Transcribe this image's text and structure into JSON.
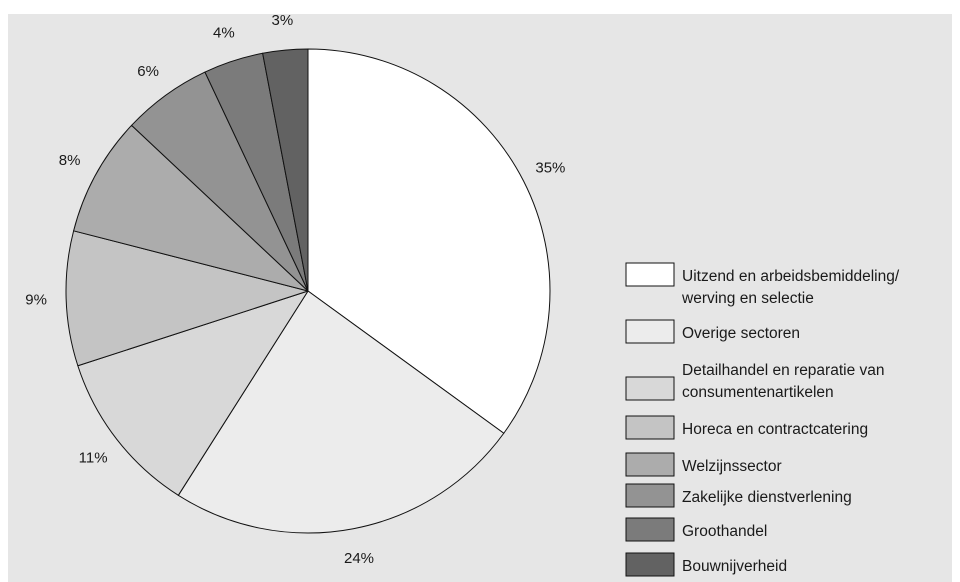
{
  "chart_data": {
    "type": "pie",
    "title": "",
    "start": "12 o'clock, clockwise",
    "slices": [
      {
        "label": "Uitzend en arbeidsbemiddeling/ werving en selectie",
        "value": 35,
        "display": "35%",
        "color": "#ffffff"
      },
      {
        "label": "Overige sectoren",
        "value": 24,
        "display": "24%",
        "color": "#ececec"
      },
      {
        "label": "Detailhandel en reparatie van consumentenartikelen",
        "value": 11,
        "display": "11%",
        "color": "#d8d8d8"
      },
      {
        "label": "Horeca en contractcatering",
        "value": 9,
        "display": "9%",
        "color": "#c4c4c4"
      },
      {
        "label": "Welzijnssector",
        "value": 8,
        "display": "8%",
        "color": "#acacac"
      },
      {
        "label": "Zakelijke dienstverlening",
        "value": 6,
        "display": "6%",
        "color": "#939393"
      },
      {
        "label": "Groothandel",
        "value": 4,
        "display": "4%",
        "color": "#7b7b7b"
      },
      {
        "label": "Bouwnijverheid",
        "value": 3,
        "display": "3%",
        "color": "#626262"
      }
    ],
    "legend": {
      "placement": "right",
      "entries": [
        [
          "Uitzend en arbeidsbemiddeling/",
          "werving en selectie"
        ],
        [
          "Overige sectoren"
        ],
        [
          "Detailhandel en reparatie van",
          "consumentenartikelen"
        ],
        [
          "Horeca en contractcatering"
        ],
        [
          "Welzijnssector"
        ],
        [
          "Zakelijke dienstverlening"
        ],
        [
          "Groothandel"
        ],
        [
          "Bouwnijverheid"
        ]
      ]
    }
  }
}
